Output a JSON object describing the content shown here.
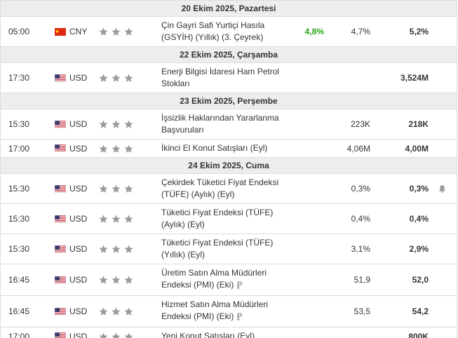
{
  "days": [
    {
      "date": "20 Ekim 2025, Pazartesi",
      "events": [
        {
          "time": "05:00",
          "currency": "CNY",
          "importance": 3,
          "event": "Çin Gayri Safi Yurtiçi Hasıla (GSYİH) (Yıllık) (3. Çeyrek)",
          "actual": "4,8%",
          "forecast": "4,7%",
          "previous": "5,2%"
        }
      ]
    },
    {
      "date": "22 Ekim 2025, Çarşamba",
      "events": [
        {
          "time": "17:30",
          "currency": "USD",
          "importance": 3,
          "event": "Enerji Bilgisi İdaresi Ham Petrol Stokları",
          "previous": "3,524M"
        }
      ]
    },
    {
      "date": "23 Ekim 2025, Perşembe",
      "events": [
        {
          "time": "15:30",
          "currency": "USD",
          "importance": 3,
          "event": "İşsizlik Haklarından Yararlanma Başvuruları",
          "forecast": "223K",
          "previous": "218K"
        },
        {
          "time": "17:00",
          "currency": "USD",
          "importance": 3,
          "event": "İkinci El Konut Satışları (Eyl)",
          "forecast": "4,06M",
          "previous": "4,00M"
        }
      ]
    },
    {
      "date": "24 Ekim 2025, Cuma",
      "events": [
        {
          "time": "15:30",
          "currency": "USD",
          "importance": 3,
          "event": "Çekirdek Tüketici Fiyat Endeksi (TÜFE) (Aylık) (Eyl)",
          "forecast": "0,3%",
          "previous": "0,3%",
          "alert": true
        },
        {
          "time": "15:30",
          "currency": "USD",
          "importance": 3,
          "event": "Tüketici Fiyat Endeksi (TÜFE) (Aylık) (Eyl)",
          "forecast": "0,4%",
          "previous": "0,4%"
        },
        {
          "time": "15:30",
          "currency": "USD",
          "importance": 3,
          "event": "Tüketici Fiyat Endeksi (TÜFE) (Yıllık) (Eyl)",
          "forecast": "3,1%",
          "previous": "2,9%"
        },
        {
          "time": "16:45",
          "currency": "USD",
          "importance": 3,
          "event": "Üretim Satın Alma Müdürleri Endeksi (PMI) (Eki)",
          "preliminary": true,
          "forecast": "51,9",
          "previous": "52,0"
        },
        {
          "time": "16:45",
          "currency": "USD",
          "importance": 3,
          "event": "Hizmet Satın Alma Müdürleri Endeksi (PMI) (Eki)",
          "preliminary": true,
          "forecast": "53,5",
          "previous": "54,2"
        },
        {
          "time": "17:00",
          "currency": "USD",
          "importance": 3,
          "event": "Yeni Konut Satışları (Eyl)",
          "previous": "800K"
        }
      ]
    }
  ]
}
